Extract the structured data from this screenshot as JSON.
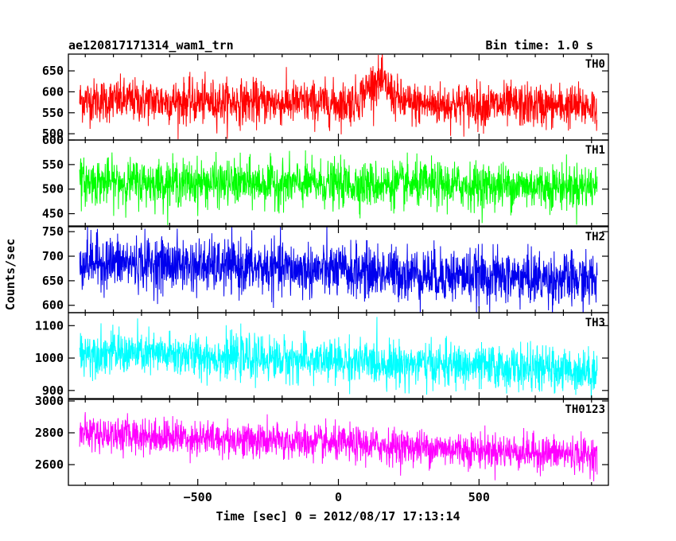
{
  "chart_data": {
    "type": "line",
    "title": "ae120817171314_wam1_trn",
    "bin_time": "Bin time: 1.0 s",
    "xlabel": "Time [sec] 0 = 2012/08/17 17:13:14",
    "ylabel": "Counts/sec",
    "xlim": [
      -960,
      960
    ],
    "x_ticks": [
      -500,
      0,
      500
    ],
    "x_tick_labels": [
      "−500",
      "0",
      "500"
    ],
    "x_data_range": [
      -920,
      920
    ],
    "grid": false,
    "panels": [
      {
        "name": "TH0",
        "color": "#ff0000",
        "ylim": [
          485,
          690
        ],
        "y_ticks": [
          500,
          550,
          600,
          650
        ],
        "y_tick_labels": [
          "500",
          "550",
          "600",
          "650"
        ],
        "mean_start": 580,
        "mean_end": 565,
        "noise_sd": 26,
        "feature": {
          "center": 140,
          "width": 40,
          "amplitude": 55
        }
      },
      {
        "name": "TH1",
        "color": "#00ff00",
        "ylim": [
          425,
          600
        ],
        "y_ticks": [
          450,
          500,
          550,
          600
        ],
        "y_tick_labels": [
          "450",
          "500",
          "550",
          "600"
        ],
        "mean_start": 515,
        "mean_end": 505,
        "noise_sd": 23
      },
      {
        "name": "TH2",
        "color": "#0000ee",
        "ylim": [
          585,
          760
        ],
        "y_ticks": [
          600,
          650,
          700,
          750
        ],
        "y_tick_labels": [
          "600",
          "650",
          "700",
          "750"
        ],
        "mean_start": 690,
        "mean_end": 650,
        "noise_sd": 27
      },
      {
        "name": "TH3",
        "color": "#00ffff",
        "ylim": [
          875,
          1140
        ],
        "y_ticks": [
          900,
          1000,
          1100
        ],
        "y_tick_labels": [
          "900",
          "1000",
          "1100"
        ],
        "mean_start": 1020,
        "mean_end": 960,
        "noise_sd": 33
      },
      {
        "name": "TH0123",
        "color": "#ff00ff",
        "ylim": [
          2470,
          3010
        ],
        "y_ticks": [
          2600,
          2800,
          3000
        ],
        "y_tick_labels": [
          "2600",
          "2800",
          "3000"
        ],
        "mean_start": 2800,
        "mean_end": 2660,
        "noise_sd": 55
      }
    ]
  }
}
